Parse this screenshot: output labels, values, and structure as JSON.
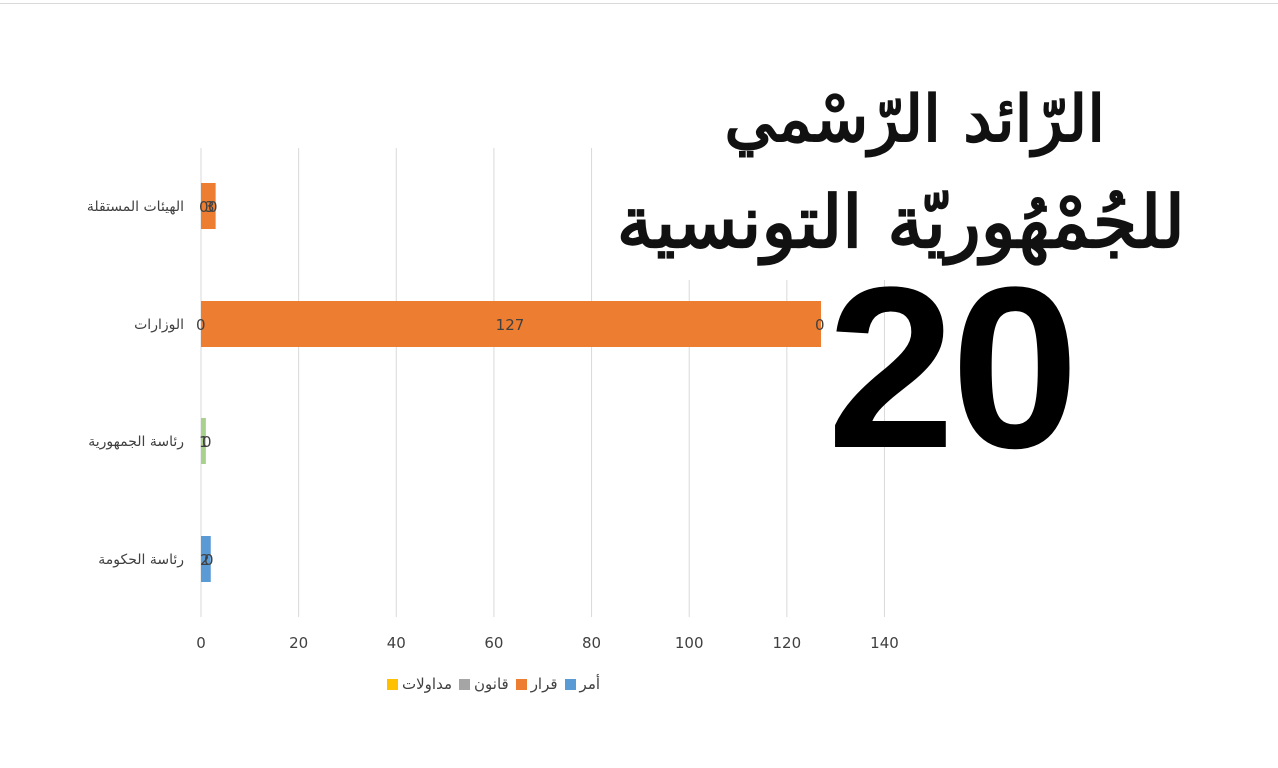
{
  "logo": {
    "line1": "الرّائد الرّسْمي",
    "line2": "للجُمْهُوريّة التونسية"
  },
  "overlay_number": "20",
  "colors": {
    "amr": "#5b9bd5",
    "qarar": "#ed7d31",
    "qanun": "#a5a5a5",
    "mudawalat": "#ffc000",
    "green": "#a9d18e",
    "grid": "#d9d9d9",
    "text": "#404040"
  },
  "chart_data": {
    "type": "bar",
    "orientation": "horizontal",
    "categories": [
      "الهيئات المستقلة",
      "الوزارات",
      "رئاسة الجمهورية",
      "رئاسة الحكومة"
    ],
    "series": [
      {
        "name": "أمر",
        "values": [
          0,
          0,
          0,
          2
        ]
      },
      {
        "name": "قرار",
        "values": [
          3,
          127,
          0,
          0
        ]
      },
      {
        "name": "قانون",
        "values": [
          0,
          0,
          1,
          0
        ]
      },
      {
        "name": "مداولات",
        "values": [
          0,
          0,
          0,
          0
        ]
      }
    ],
    "data_labels": [
      [
        "0",
        "3",
        "0"
      ],
      [
        "0",
        "127",
        "0"
      ],
      [
        "1",
        "0"
      ],
      [
        "2",
        "0"
      ]
    ],
    "xlim": [
      0,
      140
    ],
    "xticks": [
      "0",
      "20",
      "40",
      "60",
      "80",
      "100",
      "120",
      "140"
    ],
    "grid": true,
    "legend_position": "bottom"
  }
}
